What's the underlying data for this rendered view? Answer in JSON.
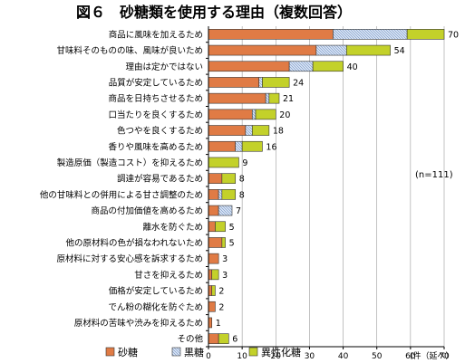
{
  "chart_data": {
    "type": "bar",
    "orientation": "horizontal",
    "stacked": true,
    "title": "図６　砂糖類を使用する理由（複数回答）",
    "annotation": "(n=111)",
    "xunit": "(件（延べ）",
    "xlim": [
      0,
      70
    ],
    "xticks": [
      "0",
      "10",
      "20",
      "30",
      "40",
      "50",
      "60",
      "70"
    ],
    "grid": true,
    "legend_position": "bottom",
    "categories": [
      "商品に風味を加えるため",
      "甘味料そのものの味、風味が良いため",
      "理由は定かではない",
      "品質が安定しているため",
      "商品を日持ちさせるため",
      "口当たりを良くするため",
      "色つやを良くするため",
      "香りや風味を高めるため",
      "製造原価（製造コスト）を抑えるため",
      "調達が容易であるため",
      "他の甘味料との併用による甘さ調整のため",
      "商品の付加価値を高めるため",
      "離水を防ぐため",
      "他の原材料の色が損なわれないため",
      "原材料に対する安心感を訴求するため",
      "甘さを抑えるため",
      "価格が安定しているため",
      "でん粉の糊化を防ぐため",
      "原材料の苦味や渋みを抑えるため",
      "その他"
    ],
    "totals": [
      "70",
      "54",
      "40",
      "24",
      "21",
      "20",
      "18",
      "16",
      "9",
      "8",
      "8",
      "7",
      "5",
      "5",
      "3",
      "3",
      "2",
      "2",
      "1",
      "6"
    ],
    "series": [
      {
        "name": "砂糖",
        "color": "#e07b45",
        "values": [
          37,
          32,
          24,
          15,
          17,
          13,
          11,
          8,
          0,
          4,
          3,
          3,
          2,
          4,
          3,
          1,
          1,
          2,
          1,
          3
        ]
      },
      {
        "name": "黒糖",
        "color": "#c6d6ee",
        "values": [
          22,
          9,
          7,
          1,
          1,
          1,
          2,
          2,
          0,
          0,
          1,
          4,
          0,
          0,
          0,
          0,
          0,
          0,
          0,
          0
        ]
      },
      {
        "name": "異性化糖",
        "color": "#c3d12a",
        "values": [
          11,
          13,
          9,
          8,
          3,
          6,
          5,
          6,
          9,
          4,
          4,
          0,
          3,
          1,
          0,
          2,
          1,
          0,
          0,
          3
        ]
      }
    ]
  }
}
